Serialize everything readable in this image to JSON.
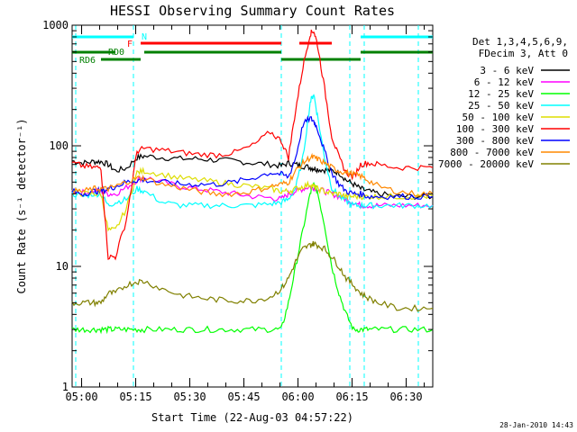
{
  "chart_data": {
    "type": "line",
    "title": "HESSI Observing Summary Count Rates",
    "xlabel": "Start Time (22-Aug-03 04:57:22)",
    "ylabel": "Count Rate (s⁻¹ detector⁻¹)",
    "yscale": "log",
    "ylim": [
      1,
      1000
    ],
    "xlim_minutes_after_start": [
      0,
      100
    ],
    "x_ticks": [
      "05:00",
      "05:15",
      "05:30",
      "05:45",
      "06:00",
      "06:15",
      "06:30"
    ],
    "x_tick_minutes": [
      2.63,
      17.63,
      32.63,
      47.63,
      62.63,
      77.63,
      92.63
    ],
    "y_ticks": [
      "1",
      "10",
      "100",
      "1000"
    ],
    "y_tick_values": [
      1,
      10,
      100,
      1000
    ],
    "legend_title": [
      "Det 1,3,4,5,6,9,",
      "FDecim 3, Att 0"
    ],
    "legend_position": "right, outside plot",
    "x_minutes": [
      0,
      3,
      6,
      8,
      10,
      12,
      15,
      18,
      20,
      25,
      30,
      35,
      40,
      45,
      50,
      55,
      58,
      60,
      62,
      64,
      66,
      67,
      68,
      70,
      72,
      74,
      76,
      78,
      80,
      82,
      85,
      90,
      95,
      100
    ],
    "series": [
      {
        "name": "3 - 6 keV",
        "color": "#000000",
        "values": [
          75,
          72,
          74,
          74,
          70,
          62,
          65,
          80,
          82,
          80,
          78,
          78,
          76,
          75,
          72,
          70,
          68,
          72,
          70,
          68,
          66,
          65,
          64,
          63,
          62,
          60,
          52,
          48,
          44,
          42,
          40,
          38,
          38,
          38
        ]
      },
      {
        "name": "6 - 12 keV",
        "color": "#ff00ff",
        "values": [
          42,
          41,
          42,
          42,
          40,
          40,
          45,
          52,
          55,
          50,
          46,
          44,
          42,
          40,
          38,
          37,
          36,
          40,
          42,
          44,
          46,
          45,
          44,
          42,
          40,
          38,
          36,
          34,
          32,
          32,
          32,
          32,
          32,
          32
        ]
      },
      {
        "name": "12 - 25 keV",
        "color": "#00ff00",
        "values": [
          3,
          3,
          3,
          3,
          3,
          3,
          3,
          3,
          3,
          3,
          3,
          3,
          3,
          3,
          3,
          3,
          3,
          5,
          10,
          20,
          40,
          48,
          42,
          22,
          10,
          6,
          4,
          3,
          3,
          3,
          3,
          3,
          3,
          3
        ]
      },
      {
        "name": "25 - 50 keV",
        "color": "#00ffff",
        "values": [
          40,
          38,
          40,
          40,
          32,
          34,
          36,
          44,
          42,
          34,
          32,
          32,
          32,
          32,
          32,
          33,
          34,
          36,
          45,
          80,
          230,
          270,
          180,
          80,
          45,
          38,
          35,
          32,
          32,
          32,
          32,
          32,
          32,
          32
        ]
      },
      {
        "name": "50 - 100 keV",
        "color": "#dddd00",
        "values": [
          42,
          40,
          40,
          40,
          20,
          20,
          30,
          60,
          62,
          58,
          54,
          52,
          50,
          48,
          46,
          44,
          42,
          42,
          44,
          46,
          48,
          46,
          44,
          42,
          40,
          40,
          38,
          38,
          38,
          38,
          38,
          38,
          38,
          38
        ]
      },
      {
        "name": "100 - 300 keV",
        "color": "#ff0000",
        "values": [
          72,
          68,
          66,
          66,
          12,
          12,
          24,
          90,
          95,
          92,
          88,
          85,
          84,
          88,
          100,
          130,
          110,
          80,
          200,
          450,
          850,
          900,
          700,
          300,
          120,
          80,
          60,
          55,
          70,
          72,
          70,
          66,
          66,
          66
        ]
      },
      {
        "name": "300 - 800 keV",
        "color": "#0000ff",
        "values": [
          42,
          40,
          42,
          42,
          44,
          46,
          50,
          52,
          52,
          50,
          48,
          48,
          48,
          50,
          54,
          60,
          58,
          55,
          80,
          150,
          170,
          160,
          140,
          90,
          60,
          48,
          42,
          40,
          40,
          38,
          38,
          38,
          38,
          38
        ]
      },
      {
        "name": "800 - 7000 keV",
        "color": "#ff8800",
        "values": [
          42,
          42,
          44,
          44,
          44,
          46,
          50,
          54,
          54,
          48,
          45,
          42,
          40,
          40,
          42,
          46,
          48,
          50,
          62,
          72,
          80,
          80,
          78,
          72,
          66,
          62,
          60,
          58,
          56,
          52,
          46,
          42,
          40,
          40
        ]
      },
      {
        "name": "7000 - 20000 keV",
        "color": "#808000",
        "values": [
          5,
          5,
          5,
          5,
          6,
          6,
          7,
          7.5,
          7.5,
          6.5,
          5.8,
          5.5,
          5.3,
          5.2,
          5.2,
          5.6,
          6.5,
          8,
          11,
          14,
          15,
          15.5,
          15,
          14,
          12,
          10,
          8,
          7,
          6,
          5.5,
          5,
          4.5,
          4.5,
          4.5
        ]
      }
    ],
    "flags": [
      {
        "label": "N",
        "color": "#00ffff",
        "segments": [
          [
            0,
            17
          ],
          [
            80,
            100
          ]
        ]
      },
      {
        "label": "F",
        "color": "#ff0000",
        "segments": [
          [
            19,
            58
          ],
          [
            63,
            72
          ]
        ]
      },
      {
        "label": "RD0",
        "color": "#008000",
        "segments": [
          [
            0,
            12
          ],
          [
            20,
            58
          ],
          [
            80,
            100
          ]
        ]
      },
      {
        "label": "RD6",
        "color": "#008000",
        "segments": [
          [
            8,
            19
          ],
          [
            58,
            80
          ]
        ]
      }
    ],
    "vertical_markers_minutes": [
      1,
      17,
      58,
      77,
      81,
      96
    ]
  },
  "footer": {
    "timestamp": "28-Jan-2010 14:43"
  }
}
